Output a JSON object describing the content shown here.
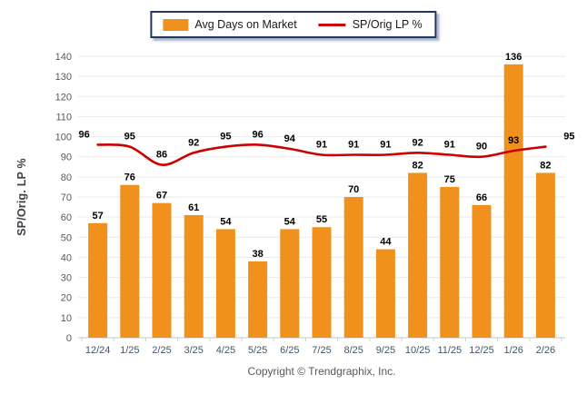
{
  "legend": {
    "items": [
      {
        "label": "Avg Days on Market",
        "type": "bar",
        "color": "#F0911E"
      },
      {
        "label": "SP/Orig LP %",
        "type": "line",
        "color": "#CC0000"
      }
    ]
  },
  "y_axis_title": "SP/Orig. LP %",
  "footer": {
    "copyright": "Copyright © Trendgraphix, Inc."
  },
  "colors": {
    "bar": "#F0911E",
    "line": "#CC0000",
    "legend_border": "#1F3864",
    "gridline": "#EAEAEA",
    "axis_line": "#C8C8C8",
    "tick_label": "#5A5A52",
    "x_label": "#44546A",
    "data_label": "#000000"
  },
  "chart_data": {
    "type": "bar",
    "title": "",
    "xlabel": "",
    "ylabel": "SP/Orig. LP %",
    "categories": [
      "12/24",
      "1/25",
      "2/25",
      "3/25",
      "4/25",
      "5/25",
      "6/25",
      "7/25",
      "8/25",
      "9/25",
      "10/25",
      "11/25",
      "12/25",
      "1/26",
      "2/26"
    ],
    "series": [
      {
        "name": "Avg Days on Market",
        "type": "bar",
        "color": "#F0911E",
        "values": [
          57,
          76,
          67,
          61,
          54,
          38,
          54,
          55,
          70,
          44,
          82,
          75,
          66,
          136,
          82
        ]
      },
      {
        "name": "SP/Orig LP %",
        "type": "line",
        "color": "#CC0000",
        "values": [
          96,
          95,
          86,
          92,
          95,
          96,
          94,
          91,
          91,
          91,
          92,
          91,
          90,
          93,
          95
        ]
      }
    ],
    "ylim": [
      0,
      140
    ],
    "ytick_step": 10,
    "grid": "horizontal",
    "legend_position": "top-center",
    "data_labels": true
  }
}
